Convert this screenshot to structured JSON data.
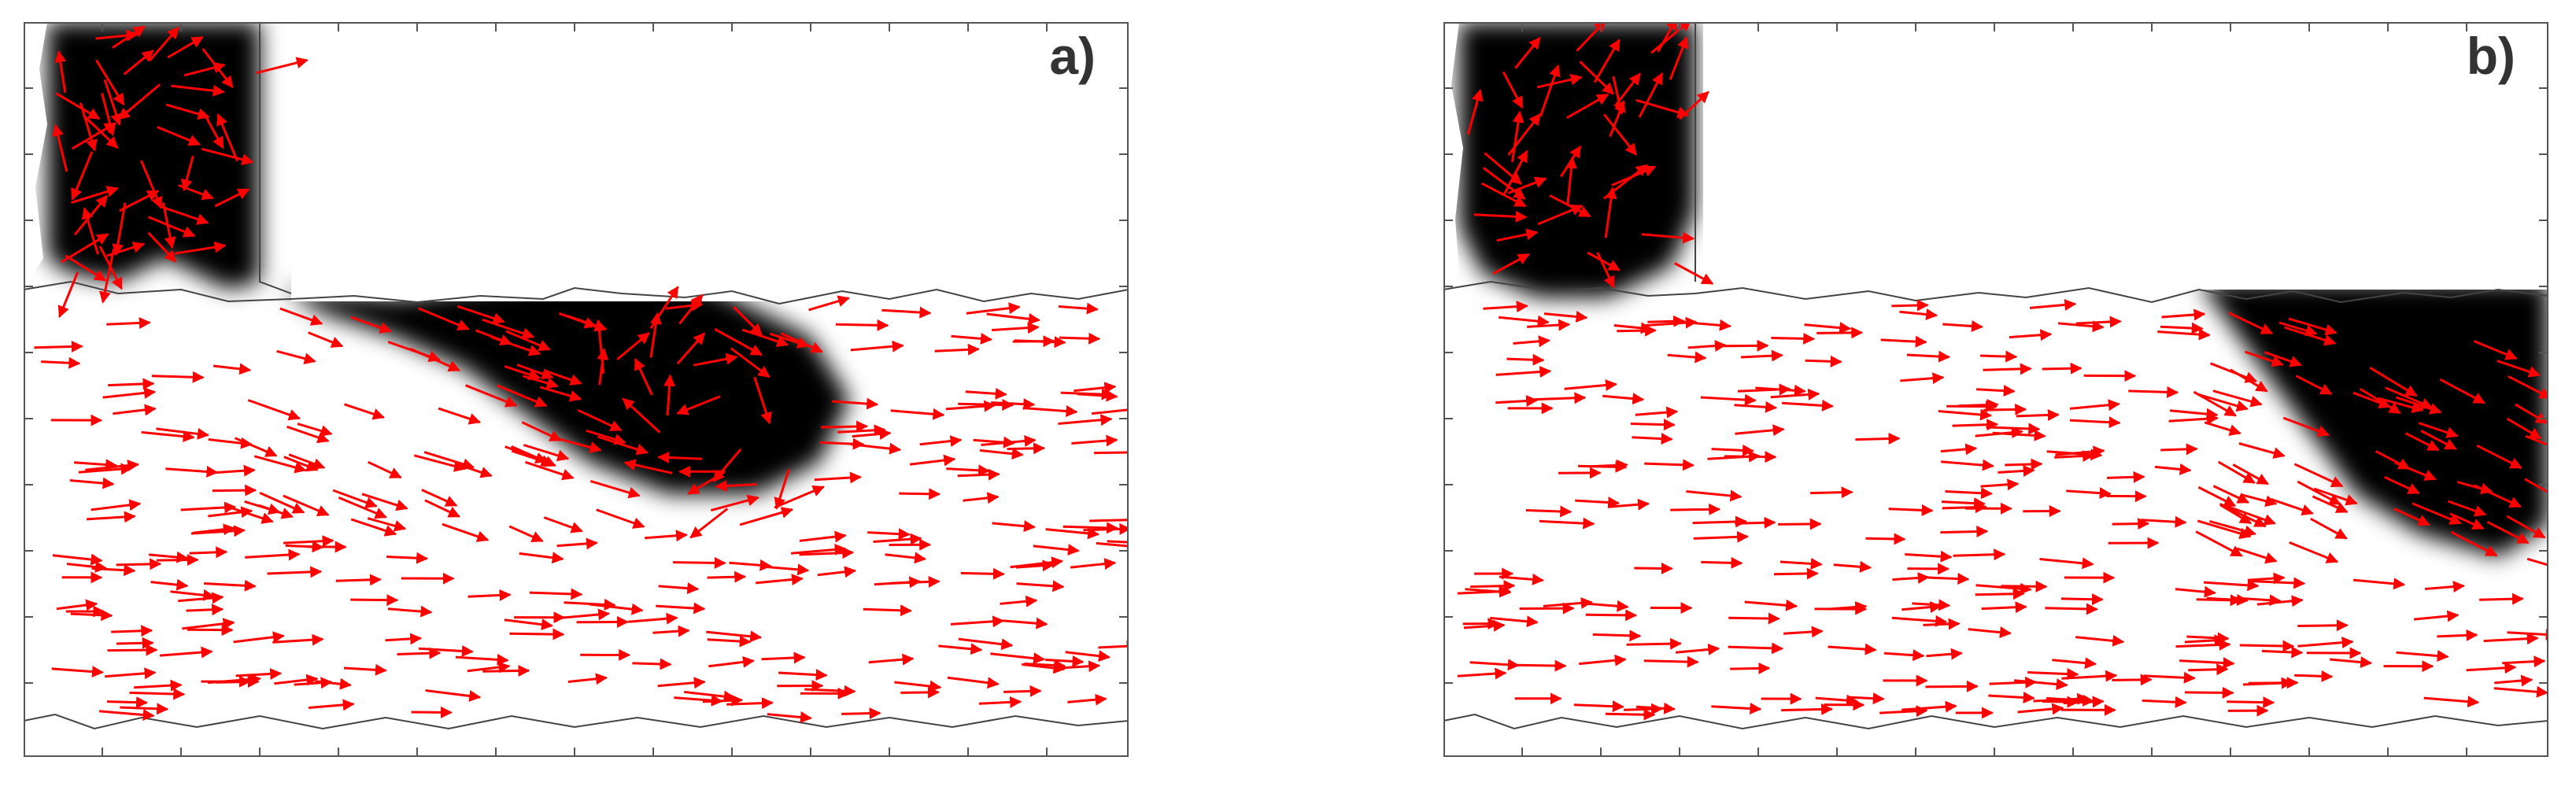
{
  "panels": [
    {
      "id": "a",
      "label": "a)"
    },
    {
      "id": "b",
      "label": "b)"
    }
  ],
  "colors": {
    "arrow": "#ff0000",
    "blob": "#000000",
    "background": "#ffffff",
    "frame": "#555555"
  }
}
